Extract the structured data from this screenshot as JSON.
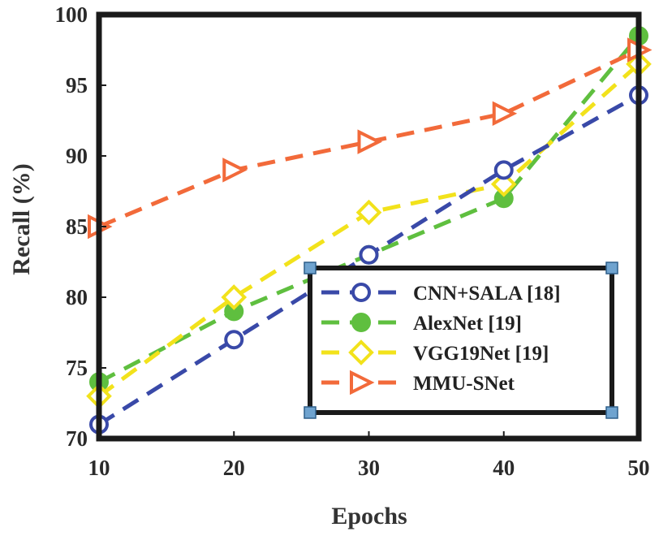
{
  "chart_data": {
    "type": "line",
    "title": "",
    "xlabel": "Epochs",
    "ylabel": "Recall (%)",
    "x": [
      10,
      20,
      30,
      40,
      50
    ],
    "xlim": [
      10,
      50
    ],
    "ylim": [
      70,
      100
    ],
    "xticks": [
      "10",
      "20",
      "30",
      "40",
      "50"
    ],
    "yticks": [
      "70",
      "75",
      "80",
      "85",
      "90",
      "95",
      "100"
    ],
    "grid": false,
    "legend_position": "bottom-right",
    "series": [
      {
        "name": "CNN+SALA [18]",
        "values": [
          71,
          77,
          83,
          89,
          94.3
        ],
        "color": "#3949a8",
        "marker": "circle-open"
      },
      {
        "name": "AlexNet [19]",
        "values": [
          74,
          79,
          83,
          87,
          98.5
        ],
        "color": "#5fbf3f",
        "marker": "circle-filled"
      },
      {
        "name": "VGG19Net [19]",
        "values": [
          73,
          80,
          86,
          88,
          96.5
        ],
        "color": "#f2e21b",
        "marker": "diamond-open"
      },
      {
        "name": "MMU-SNet",
        "values": [
          85,
          89,
          91,
          93,
          97.5
        ],
        "color": "#f26a3a",
        "marker": "triangle-right-open"
      }
    ]
  }
}
